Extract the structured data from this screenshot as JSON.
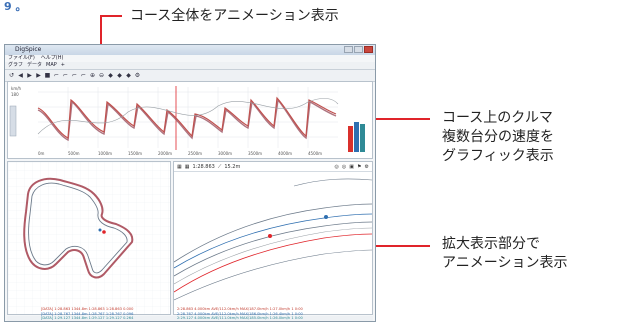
{
  "corner_text": "9 。",
  "callouts": {
    "top": "コース全体をアニメーション表示",
    "speed_line1": "コース上のクルマ",
    "speed_line2": "複数台分の速度を",
    "speed_line3": "グラフィック表示",
    "zoom_line1": "拡大表示部分で",
    "zoom_line2": "アニメーション表示"
  },
  "app": {
    "title": "DigSpice",
    "menus": [
      "ファイル(F)",
      "ヘルプ(H)"
    ],
    "tabs": [
      "グラフ",
      "データ",
      "MAP",
      "+"
    ],
    "toolbar_icons": [
      "undo-icon",
      "play-back-icon",
      "play-icon",
      "play-fwd-icon",
      "stop-icon",
      "marker-icon",
      "marker-icon",
      "marker-icon",
      "marker-icon",
      "zoom-icon",
      "zoom-icon",
      "nav-icon",
      "nav-icon",
      "nav-icon",
      "settings-icon"
    ],
    "graph": {
      "y_label_top": "km/h",
      "y_value_top": "180",
      "x_ticks": [
        "0m",
        "500m",
        "1000m",
        "1500m",
        "2000m",
        "2500m",
        "3000m",
        "3500m",
        "4000m",
        "4500m"
      ]
    },
    "zoom_toolbar": {
      "time_value": "1:28.863",
      "dist_value": "15.2m"
    },
    "status_lines": [
      "[DATA] 1:28.863  1344.8m  1:28.863  1:28.863  0.000",
      "[DATA] 1:28.767  1344.8m  1:28.767  1:28.767  0.096",
      "[DATA] 1:29.127  1344.8m  1:29.127  1:29.127  0.264"
    ],
    "status_lines_right": [
      "2:28.863  4.000km  AVE/112.0km/h  MAX/187.0km/h  1:27.0km/h  1 0:00",
      "2:28.767  4.000km  AVE/112.0km/h  MAX/186.0km/h  1:26.4km/h  1 0:00",
      "2:29.127  4.000km  AVE/111.0km/h  MAX/185.0km/h  1:26.0km/h  1 0:00"
    ]
  },
  "colors": {
    "accent_red": "#e0242a",
    "speed_series": "#c0504d",
    "speed_series_alt": "#a05a68",
    "bar_red": "#d9302c",
    "bar_blue": "#2f6fb0",
    "bar_teal": "#2f8a96"
  }
}
